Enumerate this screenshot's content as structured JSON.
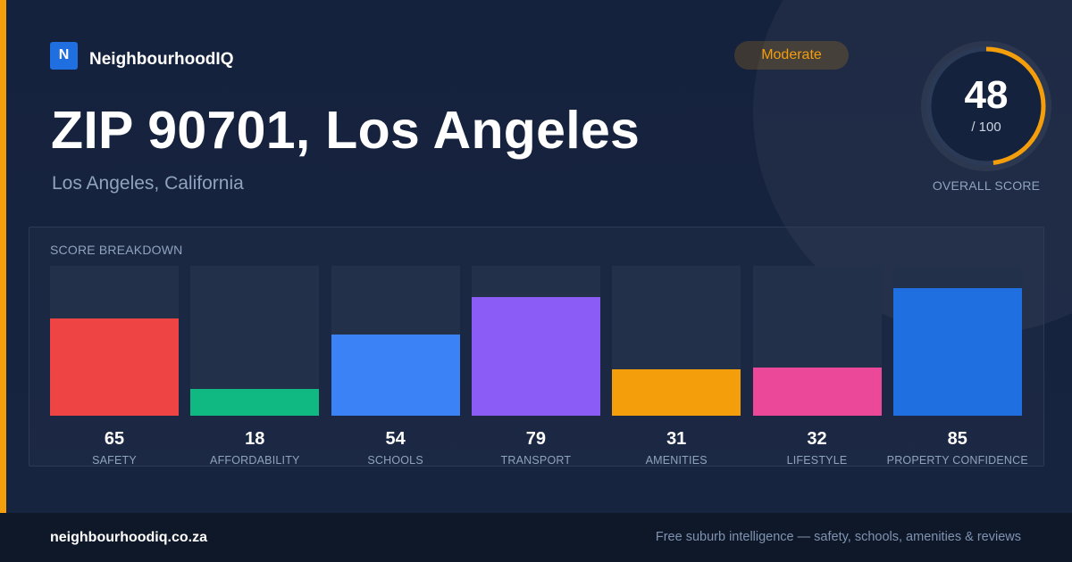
{
  "brand": {
    "logo_letter": "N",
    "name": "NeighbourhoodIQ"
  },
  "header": {
    "title": "ZIP 90701, Los Angeles",
    "subtitle": "Los Angeles, California",
    "badge": "Moderate"
  },
  "score": {
    "value": "48",
    "max_label": "/ 100",
    "label": "OVERALL SCORE",
    "fraction": 0.48,
    "ring_color": "#f59e0b"
  },
  "breakdown": {
    "title": "SCORE BREAKDOWN"
  },
  "chart_data": {
    "type": "bar",
    "categories": [
      "SAFETY",
      "AFFORDABILITY",
      "SCHOOLS",
      "TRANSPORT",
      "AMENITIES",
      "LIFESTYLE",
      "PROPERTY CONFIDENCE"
    ],
    "values": [
      65,
      18,
      54,
      79,
      31,
      32,
      85
    ],
    "colors": [
      "#ef4444",
      "#10b981",
      "#3b82f6",
      "#8b5cf6",
      "#f59e0b",
      "#ec4899",
      "#1f6fe0"
    ],
    "title": "SCORE BREAKDOWN",
    "ylim": [
      0,
      100
    ],
    "grid": false,
    "legend": "none"
  },
  "footer": {
    "site": "neighbourhoodiq.co.za",
    "tagline": "Free suburb intelligence — safety, schools, amenities & reviews"
  }
}
